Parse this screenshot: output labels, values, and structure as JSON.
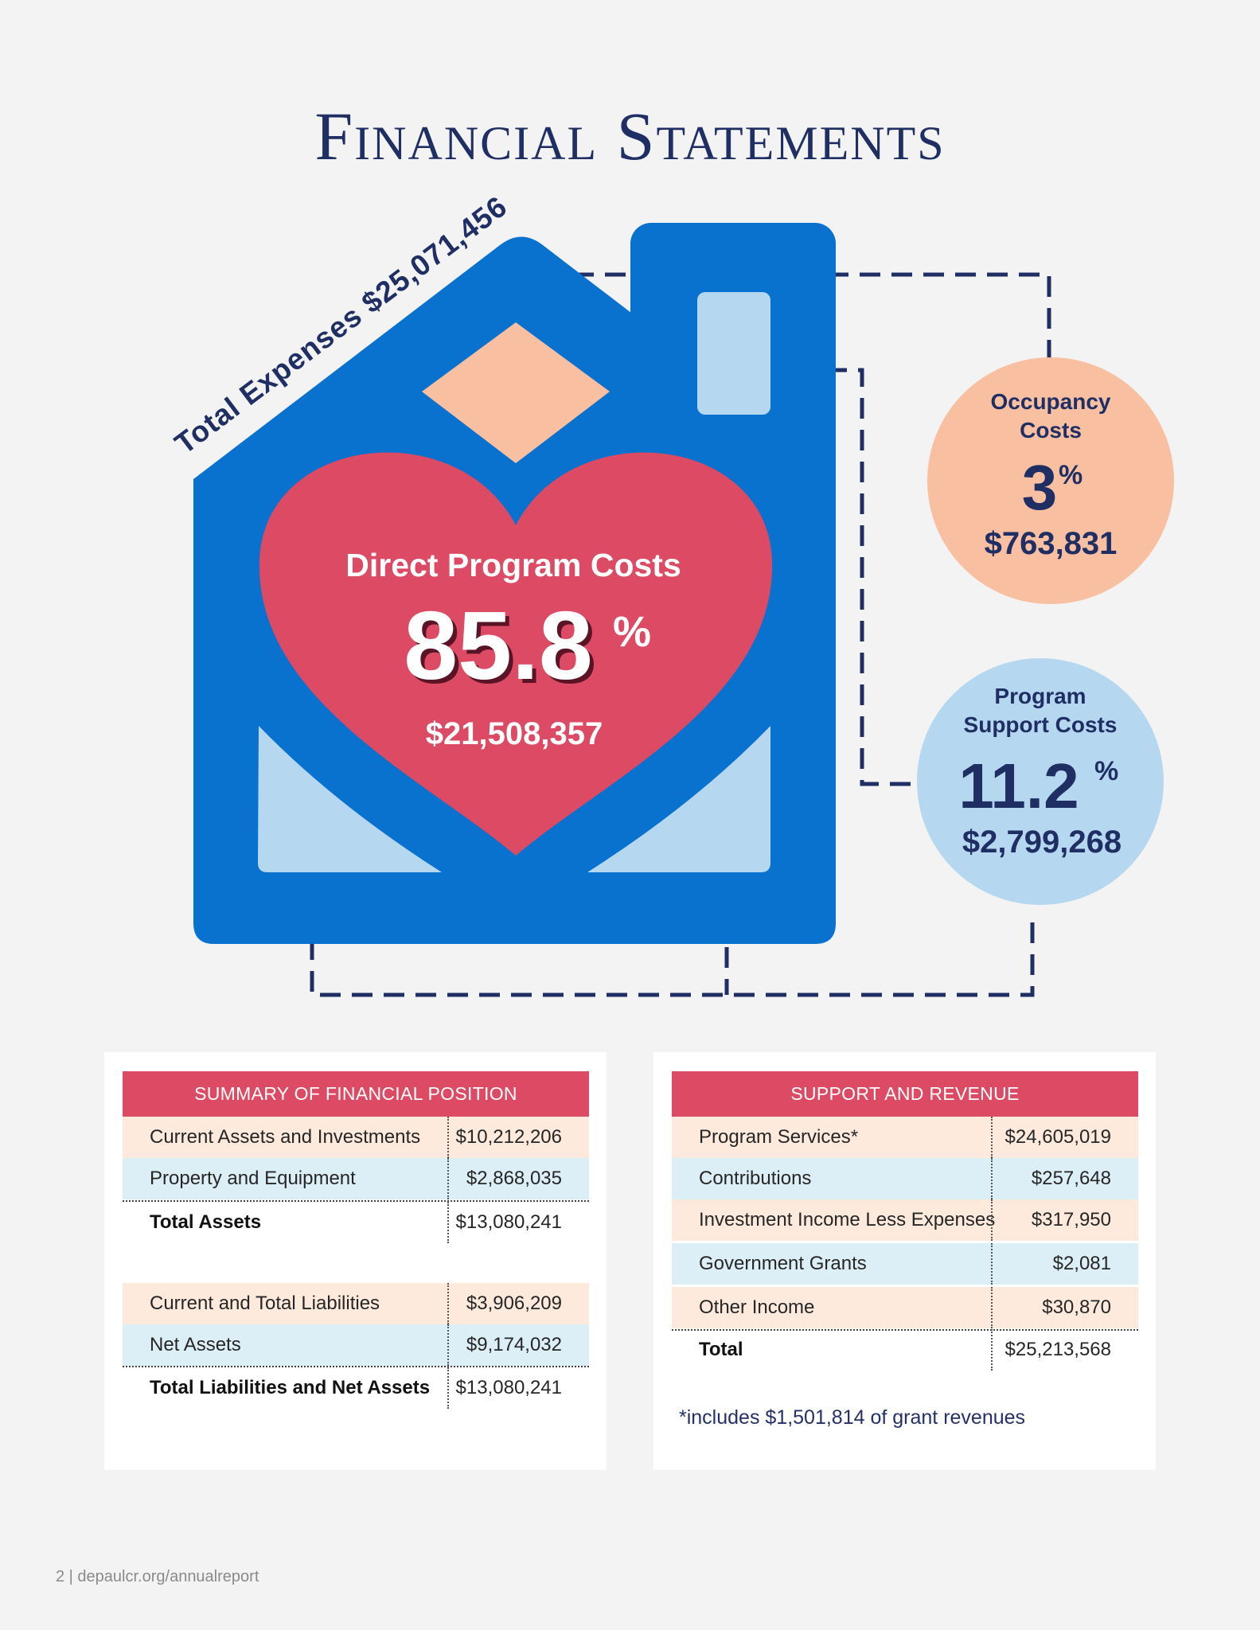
{
  "page_title": "Financial Statements",
  "infographic": {
    "total_expenses_label": "Total Expenses $25,071,456",
    "direct_program": {
      "label": "Direct Program Costs",
      "percent": "85.8",
      "amount": "$21,508,357"
    },
    "occupancy": {
      "label_line1": "Occupancy",
      "label_line2": "Costs",
      "percent": "3",
      "amount": "$763,831"
    },
    "program_support": {
      "label_line1": "Program",
      "label_line2": "Support Costs",
      "percent": "11.2",
      "amount": "$2,799,268"
    },
    "percent_sign": "%",
    "colors": {
      "house": "#0971ce",
      "heart": "#dc4a63",
      "peach": "#f9bfa1",
      "light_blue": "#b5d8f0",
      "navy": "#1f2e63"
    }
  },
  "financial_position": {
    "header": "SUMMARY OF FINANCIAL POSITION",
    "rows": [
      {
        "label": "Current Assets and Investments",
        "value": "$10,212,206"
      },
      {
        "label": "Property and Equipment",
        "value": "$2,868,035"
      },
      {
        "label": "Total Assets",
        "value": "$13,080,241"
      },
      {
        "label": "Current and Total Liabilities",
        "value": "$3,906,209"
      },
      {
        "label": "Net Assets",
        "value": "$9,174,032"
      },
      {
        "label": "Total Liabilities and Net Assets",
        "value": "$13,080,241"
      }
    ]
  },
  "support_revenue": {
    "header": "SUPPORT AND REVENUE",
    "rows": [
      {
        "label": "Program Services*",
        "value": "$24,605,019"
      },
      {
        "label": "Contributions",
        "value": "$257,648"
      },
      {
        "label": "Investment Income Less Expenses",
        "value": "$317,950"
      },
      {
        "label": "Government Grants",
        "value": "$2,081"
      },
      {
        "label": "Other Income",
        "value": "$30,870"
      },
      {
        "label": "Total",
        "value": "$25,213,568"
      }
    ],
    "note": "*includes $1,501,814 of grant revenues"
  },
  "footer": "2 | depaulcr.org/annualreport"
}
